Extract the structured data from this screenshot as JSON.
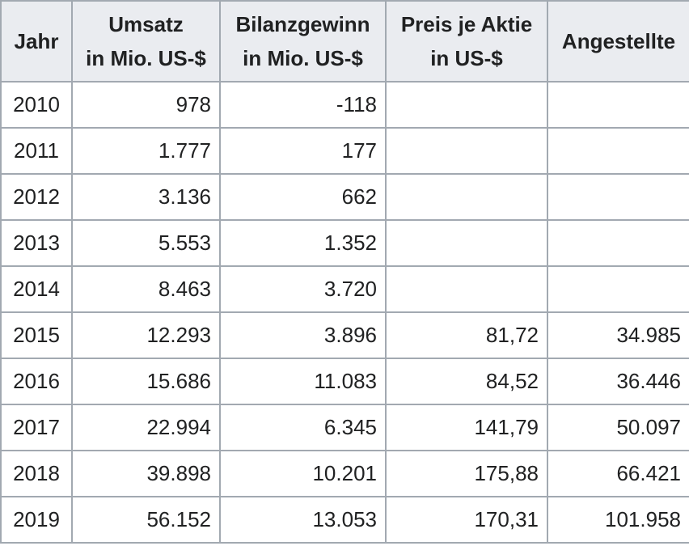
{
  "table": {
    "headers": [
      {
        "key": "year",
        "lines": [
          "Jahr"
        ]
      },
      {
        "key": "revenue",
        "lines": [
          "Umsatz",
          "in Mio. US-$"
        ]
      },
      {
        "key": "profit",
        "lines": [
          "Bilanzgewinn",
          "in Mio. US-$"
        ]
      },
      {
        "key": "share_price",
        "lines": [
          "Preis je Aktie",
          "in US-$"
        ]
      },
      {
        "key": "employees",
        "lines": [
          "Angestellte"
        ]
      }
    ],
    "rows": [
      {
        "year": "2010",
        "revenue": "978",
        "profit": "-118",
        "share_price": "",
        "employees": ""
      },
      {
        "year": "2011",
        "revenue": "1.777",
        "profit": "177",
        "share_price": "",
        "employees": ""
      },
      {
        "year": "2012",
        "revenue": "3.136",
        "profit": "662",
        "share_price": "",
        "employees": ""
      },
      {
        "year": "2013",
        "revenue": "5.553",
        "profit": "1.352",
        "share_price": "",
        "employees": ""
      },
      {
        "year": "2014",
        "revenue": "8.463",
        "profit": "3.720",
        "share_price": "",
        "employees": ""
      },
      {
        "year": "2015",
        "revenue": "12.293",
        "profit": "3.896",
        "share_price": "81,72",
        "employees": "34.985"
      },
      {
        "year": "2016",
        "revenue": "15.686",
        "profit": "11.083",
        "share_price": "84,52",
        "employees": "36.446"
      },
      {
        "year": "2017",
        "revenue": "22.994",
        "profit": "6.345",
        "share_price": "141,79",
        "employees": "50.097"
      },
      {
        "year": "2018",
        "revenue": "39.898",
        "profit": "10.201",
        "share_price": "175,88",
        "employees": "66.421"
      },
      {
        "year": "2019",
        "revenue": "56.152",
        "profit": "13.053",
        "share_price": "170,31",
        "employees": "101.958"
      }
    ]
  }
}
